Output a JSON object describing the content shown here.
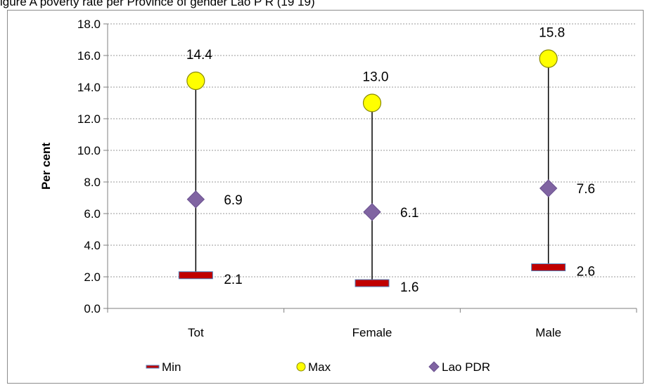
{
  "chart_data": {
    "type": "scatter",
    "title": "igure   A  poverty  rate  per  Province  of  gender  Lao  P  R  (19  19)",
    "xlabel": "",
    "ylabel": "Per cent",
    "ylim": [
      0,
      18
    ],
    "yticks": [
      "0.0",
      "2.0",
      "4.0",
      "6.0",
      "8.0",
      "10.0",
      "12.0",
      "14.0",
      "16.0",
      "18.0"
    ],
    "grid": true,
    "legend": "bottom",
    "categories": [
      "Tot",
      "Female",
      "Male"
    ],
    "series": [
      {
        "name": "Min",
        "values": [
          2.1,
          1.6,
          2.6
        ],
        "labels": [
          "2.1",
          "1.6",
          "2.6"
        ],
        "marker": "dash",
        "color": "#c00000"
      },
      {
        "name": "Max",
        "values": [
          14.4,
          13.0,
          15.8
        ],
        "labels": [
          "14.4",
          "13.0",
          "15.8"
        ],
        "marker": "circle",
        "color": "#ffff00"
      },
      {
        "name": "Lao PDR",
        "values": [
          6.9,
          6.1,
          7.6
        ],
        "labels": [
          "6.9",
          "6.1",
          "7.6"
        ],
        "marker": "diamond",
        "color": "#8064a2"
      }
    ]
  }
}
